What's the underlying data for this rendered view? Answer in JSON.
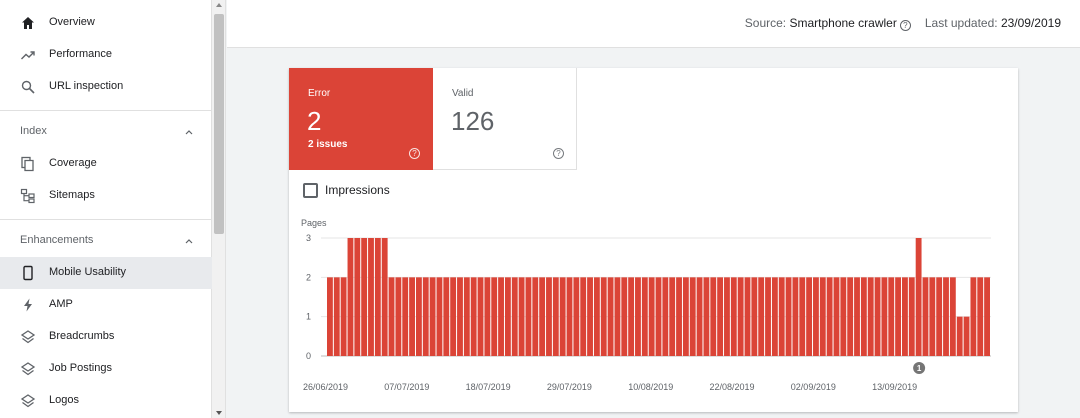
{
  "sidebar": {
    "items": [
      {
        "label": "Overview",
        "icon": "home-icon"
      },
      {
        "label": "Performance",
        "icon": "trending-up-icon"
      },
      {
        "label": "URL inspection",
        "icon": "search-icon"
      }
    ],
    "index_section": {
      "label": "Index",
      "items": [
        {
          "label": "Coverage",
          "icon": "coverage-icon"
        },
        {
          "label": "Sitemaps",
          "icon": "sitemap-icon"
        }
      ]
    },
    "enhancements_section": {
      "label": "Enhancements",
      "items": [
        {
          "label": "Mobile Usability",
          "icon": "phone-icon",
          "selected": true
        },
        {
          "label": "AMP",
          "icon": "bolt-icon"
        },
        {
          "label": "Breadcrumbs",
          "icon": "layers-icon"
        },
        {
          "label": "Job Postings",
          "icon": "layers-icon"
        },
        {
          "label": "Logos",
          "icon": "layers-icon"
        }
      ]
    }
  },
  "header": {
    "source_label": "Source:",
    "source_value": "Smartphone crawler",
    "updated_label": "Last updated:",
    "updated_value": "23/09/2019"
  },
  "summary": {
    "error": {
      "label": "Error",
      "value": "2",
      "sub": "2 issues"
    },
    "valid": {
      "label": "Valid",
      "value": "126"
    }
  },
  "impressions_label": "Impressions",
  "colors": {
    "error": "#db4437",
    "selected_bg": "#e8eaed"
  },
  "chart_data": {
    "type": "bar",
    "ylabel": "Pages",
    "yticks": [
      0,
      1,
      2,
      3
    ],
    "ylim": [
      0,
      3
    ],
    "xtick_labels": [
      "26/06/2019",
      "07/07/2019",
      "18/07/2019",
      "29/07/2019",
      "10/08/2019",
      "22/08/2019",
      "02/09/2019",
      "13/09/2019"
    ],
    "annotation": {
      "label": "1",
      "date_index": 86
    },
    "values": [
      2,
      2,
      2,
      3,
      3,
      3,
      3,
      3,
      3,
      2,
      2,
      2,
      2,
      2,
      2,
      2,
      2,
      2,
      2,
      2,
      2,
      2,
      2,
      2,
      2,
      2,
      2,
      2,
      2,
      2,
      2,
      2,
      2,
      2,
      2,
      2,
      2,
      2,
      2,
      2,
      2,
      2,
      2,
      2,
      2,
      2,
      2,
      2,
      2,
      2,
      2,
      2,
      2,
      2,
      2,
      2,
      2,
      2,
      2,
      2,
      2,
      2,
      2,
      2,
      2,
      2,
      2,
      2,
      2,
      2,
      2,
      2,
      2,
      2,
      2,
      2,
      2,
      2,
      2,
      2,
      2,
      2,
      2,
      2,
      2,
      2,
      3,
      2,
      2,
      2,
      2,
      2,
      1,
      1,
      2,
      2,
      2
    ]
  }
}
